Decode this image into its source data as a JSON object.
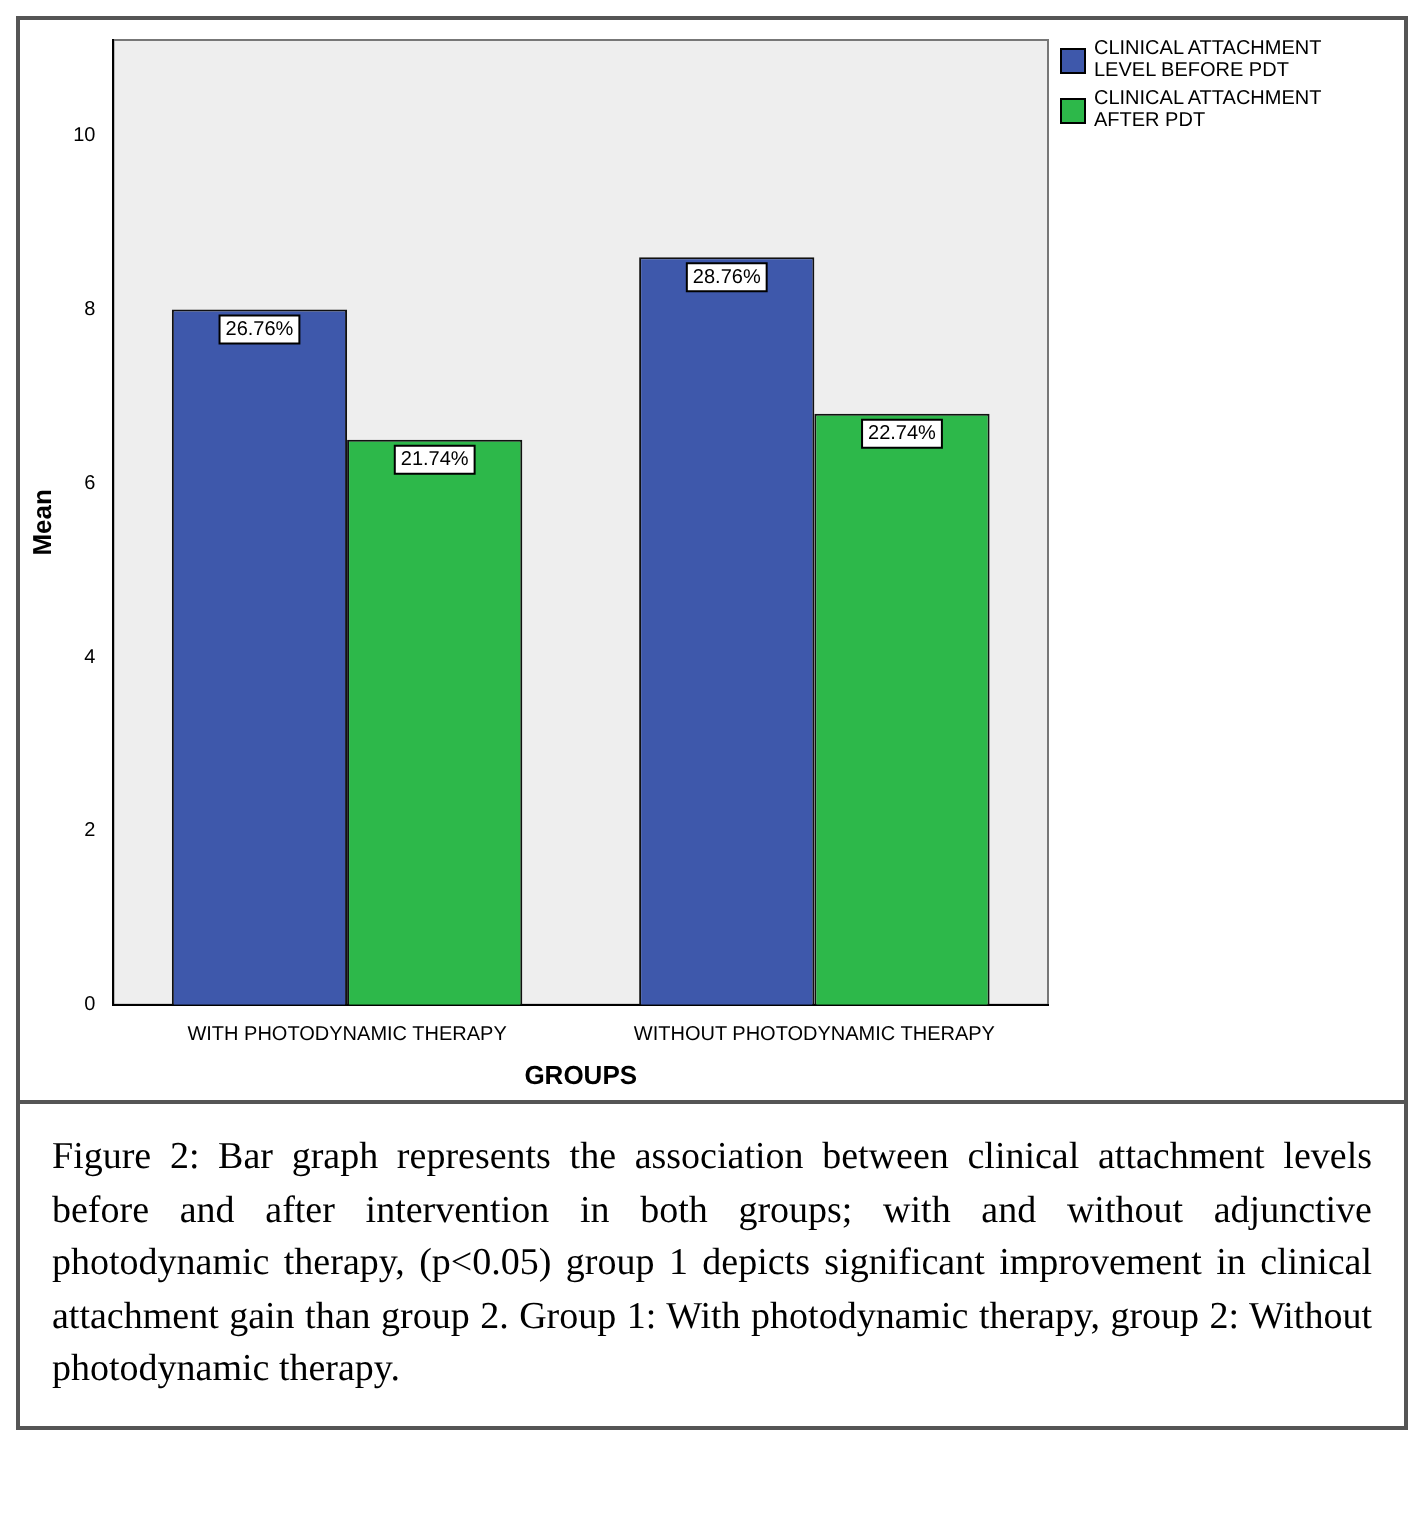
{
  "chart_data": {
    "type": "bar",
    "xlabel": "GROUPS",
    "ylabel": "Mean",
    "categories": [
      "WITH PHOTODYNAMIC THERAPY",
      "WITHOUT PHOTODYNAMIC THERAPY"
    ],
    "series": [
      {
        "name": "CLINICAL ATTACHMENT LEVEL BEFORE PDT",
        "color": "#3e58ab",
        "values": [
          8.0,
          8.6
        ]
      },
      {
        "name": "CLINICAL ATTACHMENT AFTER PDT",
        "color": "#2db84a",
        "values": [
          6.5,
          6.8
        ]
      }
    ],
    "ylim": [
      0,
      11.1
    ],
    "yticks": [
      0,
      2,
      4,
      6,
      8,
      10
    ],
    "grid": false,
    "legend": "top right",
    "annotations": [
      {
        "text": "26.76%",
        "x": "WITH PHOTODYNAMIC THERAPY",
        "y": 8.0
      },
      {
        "text": "21.74%",
        "x": "WITH PHOTODYNAMIC THERAPY",
        "y": 6.5
      },
      {
        "text": "28.76%",
        "x": "WITHOUT PHOTODYNAMIC THERAPY",
        "y": 8.6
      },
      {
        "text": "22.74%",
        "x": "WITHOUT PHOTODYNAMIC THERAPY",
        "y": 6.8
      },
      "Figure 2: Bar graph represents the association between clinical attachment levels before and after intervention in both groups; with and without adjunctive photodynamic therapy, (p<0.05) group 1 depicts significant improvement in clinical attachment gain than group 2. Group 1: With photodynamic therapy, group 2: Without photodynamic therapy."
    ]
  }
}
